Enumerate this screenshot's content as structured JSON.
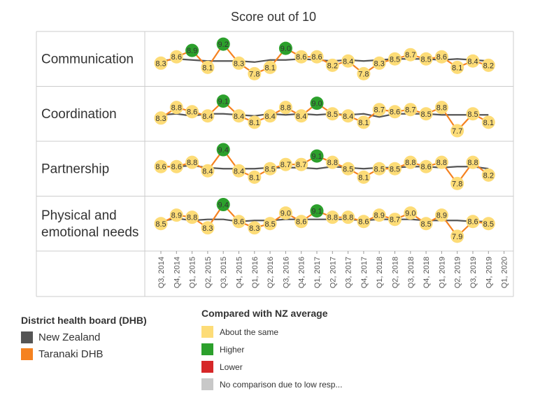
{
  "title": "Score out of 10",
  "colors": {
    "nz_line": "#555555",
    "dhb_line": "#f58220",
    "same": "#fddc77",
    "higher": "#2ca02c",
    "lower": "#d62728",
    "none": "#c8c8c8",
    "grid": "#cccccc",
    "text": "#333333"
  },
  "legend_dhb": {
    "title": "District health board (DHB)",
    "items": [
      {
        "label": "New Zealand",
        "color": "#555555"
      },
      {
        "label": "Taranaki DHB",
        "color": "#f58220"
      }
    ]
  },
  "legend_compare": {
    "title": "Compared with NZ average",
    "items": [
      {
        "label": "About the same",
        "color": "#fddc77"
      },
      {
        "label": "Higher",
        "color": "#2ca02c"
      },
      {
        "label": "Lower",
        "color": "#d62728"
      },
      {
        "label": "No comparison due to low resp...",
        "color": "#c8c8c8"
      }
    ]
  },
  "chart_data": {
    "type": "line",
    "title": "Score out of 10",
    "x": [
      "Q3, 2014",
      "Q4, 2014",
      "Q1, 2015",
      "Q2, 2015",
      "Q3, 2015",
      "Q4, 2015",
      "Q1, 2016",
      "Q2, 2016",
      "Q3, 2016",
      "Q4, 2016",
      "Q1, 2017",
      "Q2, 2017",
      "Q3, 2017",
      "Q4, 2017",
      "Q1, 2018",
      "Q2, 2018",
      "Q3, 2018",
      "Q4, 2018",
      "Q1, 2019",
      "Q2, 2019",
      "Q3, 2019",
      "Q4, 2019",
      "Q1, 2020"
    ],
    "series_names": [
      "New Zealand",
      "Taranaki DHB"
    ],
    "panels": [
      {
        "name": "Communication",
        "label_lines": [
          "Communication"
        ],
        "dhb": [
          8.3,
          8.6,
          8.9,
          8.1,
          9.2,
          8.3,
          7.8,
          8.1,
          9.0,
          8.6,
          8.6,
          8.2,
          8.4,
          7.8,
          8.3,
          8.5,
          8.7,
          8.5,
          8.6,
          8.1,
          8.4,
          8.2,
          null
        ],
        "nz": [
          8.4,
          8.5,
          8.45,
          8.4,
          8.4,
          8.4,
          8.35,
          8.45,
          8.45,
          8.5,
          8.45,
          8.4,
          8.45,
          8.4,
          8.45,
          8.5,
          8.5,
          8.5,
          8.45,
          8.5,
          8.45,
          8.4,
          null
        ],
        "status": [
          "same",
          "same",
          "higher",
          "same",
          "higher",
          "same",
          "same",
          "same",
          "higher",
          "same",
          "same",
          "same",
          "same",
          "same",
          "same",
          "same",
          "same",
          "same",
          "same",
          "same",
          "same",
          "same",
          null
        ]
      },
      {
        "name": "Coordination",
        "label_lines": [
          "Coordination"
        ],
        "dhb": [
          8.3,
          8.8,
          8.6,
          8.4,
          9.1,
          8.4,
          8.1,
          8.4,
          8.8,
          8.4,
          9.0,
          8.5,
          8.4,
          8.1,
          8.7,
          8.6,
          8.7,
          8.5,
          8.8,
          7.7,
          8.5,
          8.1,
          null
        ],
        "nz": [
          8.45,
          8.5,
          8.4,
          8.5,
          8.5,
          8.45,
          8.4,
          8.5,
          8.45,
          8.5,
          8.45,
          8.5,
          8.45,
          8.5,
          8.35,
          8.5,
          8.5,
          8.5,
          8.45,
          8.45,
          8.45,
          8.45,
          null
        ],
        "status": [
          "same",
          "same",
          "same",
          "same",
          "higher",
          "same",
          "same",
          "same",
          "same",
          "same",
          "higher",
          "same",
          "same",
          "same",
          "same",
          "same",
          "same",
          "same",
          "same",
          "same",
          "same",
          "same",
          null
        ]
      },
      {
        "name": "Partnership",
        "label_lines": [
          "Partnership"
        ],
        "dhb": [
          8.6,
          8.6,
          8.8,
          8.4,
          9.4,
          8.4,
          8.1,
          8.5,
          8.7,
          8.7,
          9.1,
          8.8,
          8.5,
          8.1,
          8.5,
          8.5,
          8.8,
          8.6,
          8.8,
          7.8,
          8.8,
          8.2,
          null
        ],
        "nz": [
          8.6,
          8.6,
          8.65,
          8.55,
          8.5,
          8.5,
          8.5,
          8.55,
          8.55,
          8.55,
          8.5,
          8.6,
          8.55,
          8.5,
          8.55,
          8.55,
          8.6,
          8.6,
          8.55,
          8.6,
          8.6,
          8.5,
          null
        ],
        "status": [
          "same",
          "same",
          "same",
          "same",
          "higher",
          "same",
          "same",
          "same",
          "same",
          "same",
          "higher",
          "same",
          "same",
          "same",
          "same",
          "same",
          "same",
          "same",
          "same",
          "same",
          "same",
          "same",
          null
        ]
      },
      {
        "name": "Physical and emotional needs",
        "label_lines": [
          "Physical and",
          "emotional needs"
        ],
        "dhb": [
          8.5,
          8.9,
          8.8,
          8.3,
          9.4,
          8.6,
          8.3,
          8.5,
          9.0,
          8.6,
          9.1,
          8.8,
          8.8,
          8.6,
          8.9,
          8.7,
          9.0,
          8.5,
          8.9,
          7.9,
          8.6,
          8.5,
          null
        ],
        "nz": [
          8.6,
          8.75,
          8.65,
          8.7,
          8.7,
          8.6,
          8.65,
          8.65,
          8.7,
          8.7,
          8.7,
          8.7,
          8.7,
          8.65,
          8.7,
          8.7,
          8.7,
          8.65,
          8.65,
          8.65,
          8.6,
          8.6,
          null
        ],
        "status": [
          "same",
          "same",
          "same",
          "same",
          "higher",
          "same",
          "same",
          "same",
          "same",
          "same",
          "higher",
          "same",
          "same",
          "same",
          "same",
          "same",
          "same",
          "same",
          "same",
          "same",
          "same",
          "same",
          null
        ]
      }
    ]
  }
}
